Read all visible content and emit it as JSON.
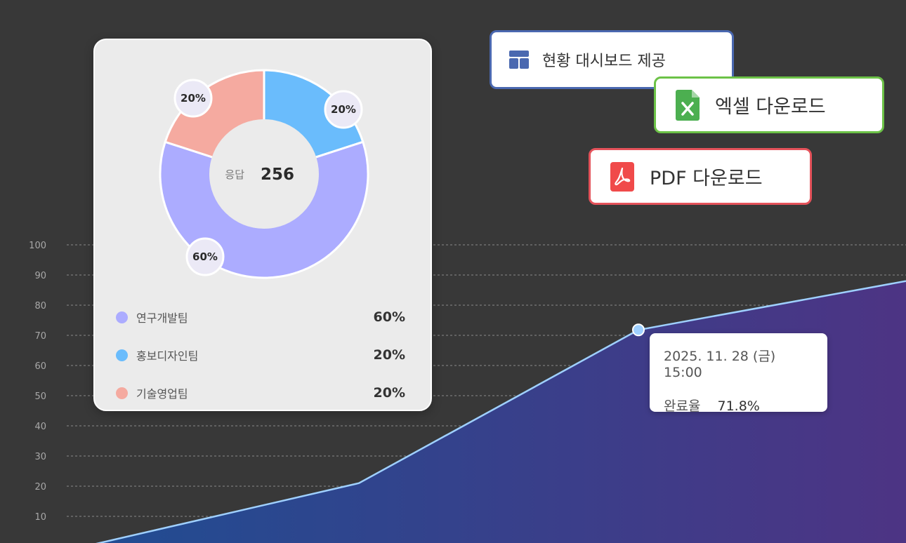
{
  "buttons": {
    "dashboard": {
      "label": "현황 대시보드 제공",
      "icon": "dashboard-layout-icon",
      "color": "#4a68b0"
    },
    "excel": {
      "label": "엑셀 다운로드",
      "icon": "excel-file-icon",
      "color": "#6cc247"
    },
    "pdf": {
      "label": "PDF 다운로드",
      "icon": "pdf-icon",
      "color": "#e4525a"
    }
  },
  "tooltip": {
    "date": "2025. 11. 28 (금) 15:00",
    "metric_label": "완료율",
    "metric_value": "71.8%"
  },
  "chart_data": [
    {
      "type": "pie",
      "center_label": "응답",
      "center_value": "256",
      "series": [
        {
          "name": "연구개발팀",
          "value": 60,
          "label": "60%",
          "color": "#acacff"
        },
        {
          "name": "홍보디자인팀",
          "value": 20,
          "label": "20%",
          "color": "#6abcfc"
        },
        {
          "name": "기술영업팀",
          "value": 20,
          "label": "20%",
          "color": "#f5aaa0"
        }
      ]
    },
    {
      "type": "area",
      "x": [
        0,
        1,
        2,
        3
      ],
      "values": [
        0,
        21,
        71.8,
        88
      ],
      "highlight_index": 2,
      "ylim": [
        0,
        100
      ],
      "yticks": [
        10,
        20,
        30,
        40,
        50,
        60,
        70,
        80,
        90,
        100
      ],
      "grid": true,
      "line_color": "#9fd0ff",
      "fill_gradient": [
        "#204d92",
        "#4d3484"
      ]
    }
  ]
}
